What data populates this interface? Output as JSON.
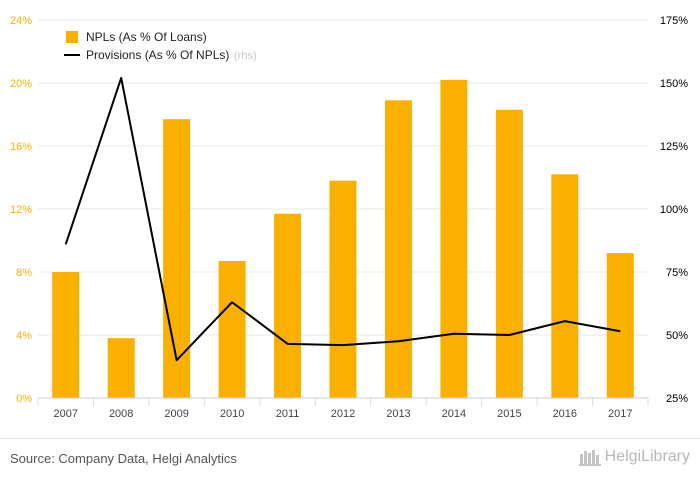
{
  "chart_data": {
    "type": "bar+line",
    "categories": [
      "2007",
      "2008",
      "2009",
      "2010",
      "2011",
      "2012",
      "2013",
      "2014",
      "2015",
      "2016",
      "2017"
    ],
    "series": [
      {
        "name": "NPLs (As % Of Loans)",
        "type": "bar",
        "axis": "left",
        "color": "#F9B000",
        "values": [
          8.0,
          3.8,
          17.7,
          8.7,
          11.7,
          13.8,
          18.9,
          20.2,
          18.3,
          14.2,
          9.2
        ]
      },
      {
        "name": "Provisions (As % Of NPLs)",
        "legend_suffix": "(rhs)",
        "type": "line",
        "axis": "right",
        "color": "#000000",
        "values": [
          86,
          152,
          40,
          63,
          46.5,
          46,
          47.5,
          50.5,
          50,
          55.5,
          51.5
        ]
      }
    ],
    "left_axis": {
      "ticks": [
        0,
        4,
        8,
        12,
        16,
        20,
        24
      ],
      "tick_labels": [
        "0%",
        "4%",
        "8%",
        "12%",
        "16%",
        "20%",
        "24%"
      ],
      "range": [
        0,
        24
      ],
      "color": "#F9B000"
    },
    "right_axis": {
      "ticks": [
        25,
        50,
        75,
        100,
        125,
        150,
        175
      ],
      "tick_labels": [
        "25%",
        "50%",
        "75%",
        "100%",
        "125%",
        "150%",
        "175%"
      ],
      "range": [
        25,
        175
      ],
      "color": "#000000"
    },
    "grid": true,
    "legend_position": "top-left"
  },
  "footer": {
    "source": "Source: Company Data, Helgi Analytics",
    "brand": "HelgiLibrary"
  }
}
